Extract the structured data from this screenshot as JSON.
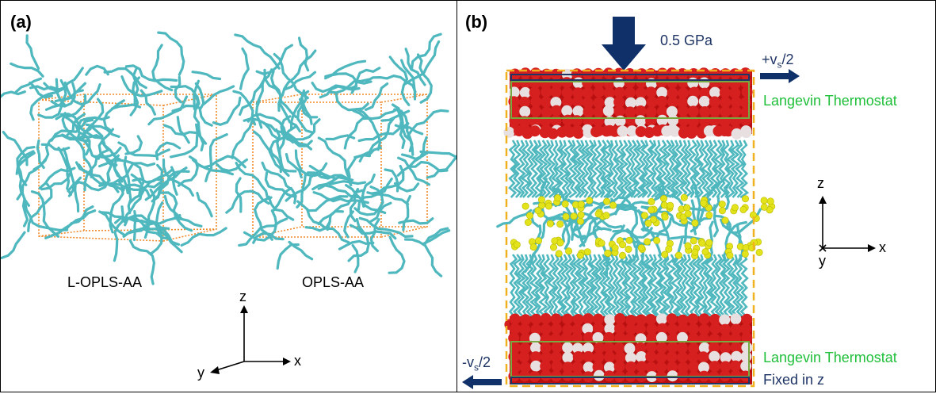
{
  "panel_a": {
    "label": "(a)",
    "left_model": "L-OPLS-AA",
    "right_model": "OPLS-AA",
    "axes": {
      "z": "z",
      "y": "y",
      "x": "x"
    }
  },
  "panel_b": {
    "label": "(b)",
    "pressure": "0.5 GPa",
    "top_velocity_sign": "+v",
    "top_velocity_sub": "s",
    "top_velocity_tail": "/2",
    "bottom_velocity_sign": "-v",
    "bottom_velocity_sub": "s",
    "bottom_velocity_tail": "/2",
    "top_thermostat": "Langevin Thermostat",
    "bottom_thermostat": "Langevin Thermostat",
    "fixed_label": "Fixed in z",
    "axes": {
      "z": "z",
      "x": "x",
      "y": "y"
    }
  },
  "colors": {
    "chain": "#4fb8be",
    "box_edge": "#f08a2a",
    "oxygen": "#d62020",
    "hydrogen": "#e8e0e0",
    "headgroup": "#e3e31c",
    "dashed_box": "#f0b020",
    "thermo_green": "#1fbf3a",
    "arrow_navy": "#10306a"
  }
}
